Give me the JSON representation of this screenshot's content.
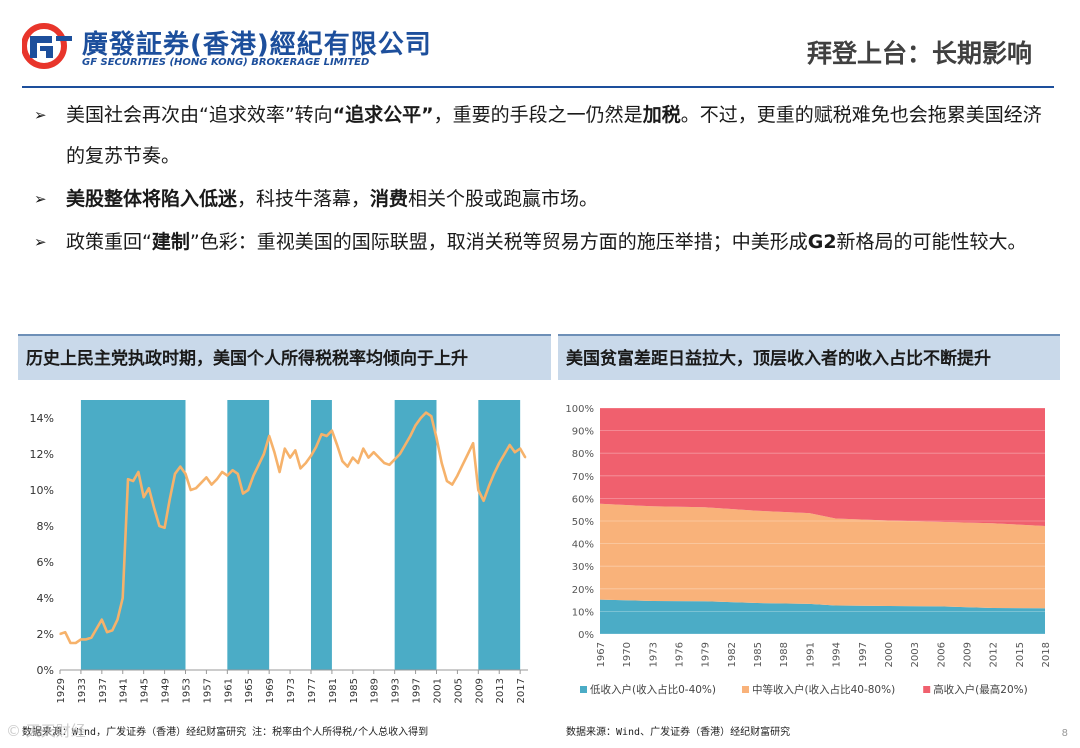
{
  "brand": {
    "name_cn": "廣發証券(香港)經紀有限公司",
    "name_en": "GF SECURITIES (HONG KONG) BROKERAGE LIMITED",
    "colors": {
      "primary": "#1d4f9c",
      "accent": "#e8352b"
    }
  },
  "page": {
    "title": "拜登上台：长期影响",
    "number": "8",
    "watermark": "© 天天财经"
  },
  "bullets": [
    {
      "segments": [
        {
          "text": "美国社会再次由“追求效率”转向",
          "bold": false
        },
        {
          "text": "“追求公平”",
          "bold": true
        },
        {
          "text": "，重要的手段之一仍然是",
          "bold": false
        },
        {
          "text": "加税",
          "bold": true
        },
        {
          "text": "。不过，更重的赋税难免也会拖累美国经济的复苏节奏。",
          "bold": false
        }
      ]
    },
    {
      "segments": [
        {
          "text": "美股整体将陷入低迷",
          "bold": true
        },
        {
          "text": "，科技牛落幕，",
          "bold": false
        },
        {
          "text": "消费",
          "bold": true
        },
        {
          "text": "相关个股或跑赢市场。",
          "bold": false
        }
      ]
    },
    {
      "segments": [
        {
          "text": "政策重回“",
          "bold": false
        },
        {
          "text": "建制",
          "bold": true
        },
        {
          "text": "”色彩：重视美国的国际联盟，取消关税等贸易方面的施压举措；中美形成",
          "bold": false
        },
        {
          "text": "G2",
          "bold": true
        },
        {
          "text": "新格局的可能性较大。",
          "bold": false
        }
      ]
    }
  ],
  "left_panel": {
    "heading": "历史上民主党执政时期，美国个人所得税税率均倾向于上升",
    "source": "数据来源：Wind，广发证券（香港）经纪财富研究  注：税率由个人所得税/个人总收入得到"
  },
  "right_panel": {
    "heading": "美国贫富差距日益拉大，顶层收入者的收入占比不断提升",
    "source": "数据来源：Wind、广发证券（香港）经纪财富研究"
  },
  "chart_data": [
    {
      "type": "line",
      "title": "历史上民主党执政时期，美国个人所得税税率均倾向于上升",
      "xlabel": "",
      "ylabel": "",
      "x_ticks": [
        "1929",
        "1933",
        "1937",
        "1941",
        "1945",
        "1949",
        "1953",
        "1957",
        "1961",
        "1965",
        "1969",
        "1973",
        "1977",
        "1981",
        "1985",
        "1989",
        "1993",
        "1997",
        "2001",
        "2005",
        "2009",
        "2013",
        "2017"
      ],
      "y_ticks": [
        "0%",
        "2%",
        "4%",
        "6%",
        "8%",
        "10%",
        "12%",
        "14%"
      ],
      "ylim": [
        0,
        15
      ],
      "grid": false,
      "colors": {
        "line": "#f6b26b",
        "band": "#4bacc6"
      },
      "shaded_periods": [
        [
          1933,
          1953
        ],
        [
          1961,
          1969
        ],
        [
          1977,
          1981
        ],
        [
          1993,
          2001
        ],
        [
          2009,
          2017
        ]
      ],
      "series": [
        {
          "x": [
            1929,
            1930,
            1931,
            1932,
            1933,
            1934,
            1935,
            1936,
            1937,
            1938,
            1939,
            1940,
            1941,
            1942,
            1943,
            1944,
            1945,
            1946,
            1947,
            1948,
            1949,
            1950,
            1951,
            1952,
            1953,
            1954,
            1955,
            1956,
            1957,
            1958,
            1959,
            1960,
            1961,
            1962,
            1963,
            1964,
            1965,
            1966,
            1967,
            1968,
            1969,
            1970,
            1971,
            1972,
            1973,
            1974,
            1975,
            1976,
            1977,
            1978,
            1979,
            1980,
            1981,
            1982,
            1983,
            1984,
            1985,
            1986,
            1987,
            1988,
            1989,
            1990,
            1991,
            1992,
            1993,
            1994,
            1995,
            1996,
            1997,
            1998,
            1999,
            2000,
            2001,
            2002,
            2003,
            2004,
            2005,
            2006,
            2007,
            2008,
            2009,
            2010,
            2011,
            2012,
            2013,
            2014,
            2015,
            2016,
            2017,
            2018
          ],
          "values": [
            2.0,
            2.1,
            1.5,
            1.5,
            1.7,
            1.7,
            1.8,
            2.3,
            2.8,
            2.1,
            2.2,
            2.8,
            4.0,
            10.6,
            10.5,
            11.0,
            9.6,
            10.1,
            9.0,
            8.0,
            7.9,
            9.5,
            10.9,
            11.3,
            10.9,
            10.0,
            10.1,
            10.4,
            10.7,
            10.3,
            10.6,
            11.0,
            10.8,
            11.1,
            10.9,
            9.8,
            10.0,
            10.8,
            11.4,
            12.0,
            13.0,
            12.1,
            11.0,
            12.3,
            11.8,
            12.2,
            11.2,
            11.5,
            11.9,
            12.4,
            13.1,
            13.0,
            13.3,
            12.5,
            11.6,
            11.3,
            11.8,
            11.5,
            12.3,
            11.8,
            12.1,
            11.8,
            11.5,
            11.4,
            11.7,
            12.0,
            12.5,
            13.0,
            13.6,
            14.0,
            14.3,
            14.1,
            12.9,
            11.5,
            10.5,
            10.3,
            10.8,
            11.4,
            12.0,
            12.6,
            10.0,
            9.4,
            10.2,
            10.9,
            11.5,
            12.0,
            12.5,
            12.1,
            12.3,
            11.8
          ]
        }
      ]
    },
    {
      "type": "area",
      "title": "美国贫富差距日益拉大，顶层收入者的收入占比不断提升",
      "stacked": true,
      "x_ticks": [
        "1967",
        "1970",
        "1973",
        "1976",
        "1979",
        "1982",
        "1985",
        "1988",
        "1991",
        "1994",
        "1997",
        "2000",
        "2003",
        "2006",
        "2009",
        "2012",
        "2015",
        "2018"
      ],
      "y_ticks": [
        "0%",
        "10%",
        "20%",
        "30%",
        "40%",
        "50%",
        "60%",
        "70%",
        "80%",
        "90%",
        "100%"
      ],
      "ylim": [
        0,
        100
      ],
      "grid": true,
      "legend_position": "bottom",
      "series": [
        {
          "name": "低收入户(收入占比0-40%)",
          "color": "#4bacc6",
          "x": [
            1967,
            1973,
            1979,
            1985,
            1991,
            1994,
            2000,
            2006,
            2012,
            2018
          ],
          "values": [
            15.2,
            14.6,
            14.5,
            13.7,
            13.3,
            12.6,
            12.4,
            12.2,
            11.5,
            11.4
          ]
        },
        {
          "name": "中等收入户(收入占比40-80%)",
          "color": "#f9b27a",
          "x": [
            1967,
            1973,
            1979,
            1985,
            1991,
            1994,
            2000,
            2006,
            2012,
            2018
          ],
          "values": [
            42.4,
            41.9,
            41.6,
            40.8,
            40.2,
            38.5,
            37.8,
            37.4,
            37.5,
            36.4
          ]
        },
        {
          "name": "高收入户(最高20%)",
          "color": "#f0606e",
          "x": [
            1967,
            1973,
            1979,
            1985,
            1991,
            1994,
            2000,
            2006,
            2012,
            2018
          ],
          "values": [
            42.4,
            43.5,
            43.9,
            45.5,
            46.5,
            48.9,
            49.8,
            50.4,
            51.0,
            52.2
          ]
        }
      ]
    }
  ]
}
